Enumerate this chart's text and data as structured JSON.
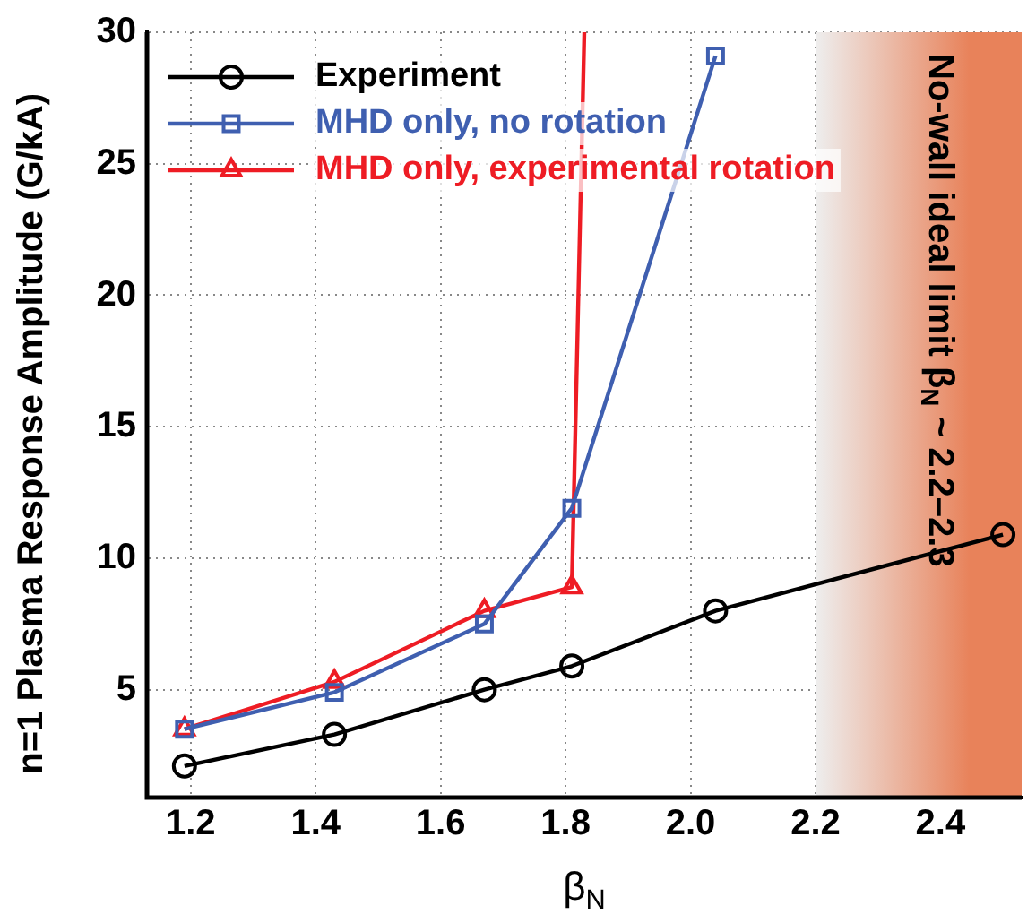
{
  "chart_data": {
    "type": "line",
    "xlabel": "β$_{N}$",
    "ylabel": "n=1 Plasma Response Amplitude (G/kA)",
    "xlim": [
      1.13,
      2.53
    ],
    "ylim": [
      0.9,
      30
    ],
    "xticks": [
      1.2,
      1.4,
      1.6,
      1.8,
      {
        "value": 2,
        "label": "2.0"
      },
      2.2,
      2.4
    ],
    "yticks": [
      5,
      10,
      15,
      20,
      25,
      30
    ],
    "grid": true,
    "legend": "top left",
    "line_style": "solid",
    "series": [
      {
        "name": "Experiment",
        "color": "#000000",
        "marker": "circle",
        "x": [
          1.19,
          1.43,
          1.67,
          1.81,
          2.04,
          2.5
        ],
        "values": [
          2.1,
          3.3,
          5.0,
          5.9,
          8.0,
          10.9
        ]
      },
      {
        "name": "MHD only, no rotation",
        "color": "#3f5fb0",
        "marker": "square",
        "x": [
          1.19,
          1.43,
          1.67,
          1.81,
          2.04
        ],
        "values": [
          3.5,
          4.9,
          7.5,
          11.9,
          29.1
        ]
      },
      {
        "name": "MHD only, experimental rotation",
        "color": "#ee1c24",
        "marker": "triangle",
        "x": [
          1.19,
          1.43,
          1.67,
          1.81,
          1.83
        ],
        "values": [
          3.5,
          5.3,
          8.0,
          8.9,
          30
        ]
      }
    ],
    "bands": [
      {
        "axis": "x",
        "from": 2.2,
        "to": 2.53,
        "label": "No-wall ideal limit β$_{N}$ ~ 2.2–2.3",
        "color": "#e8825a"
      }
    ]
  }
}
